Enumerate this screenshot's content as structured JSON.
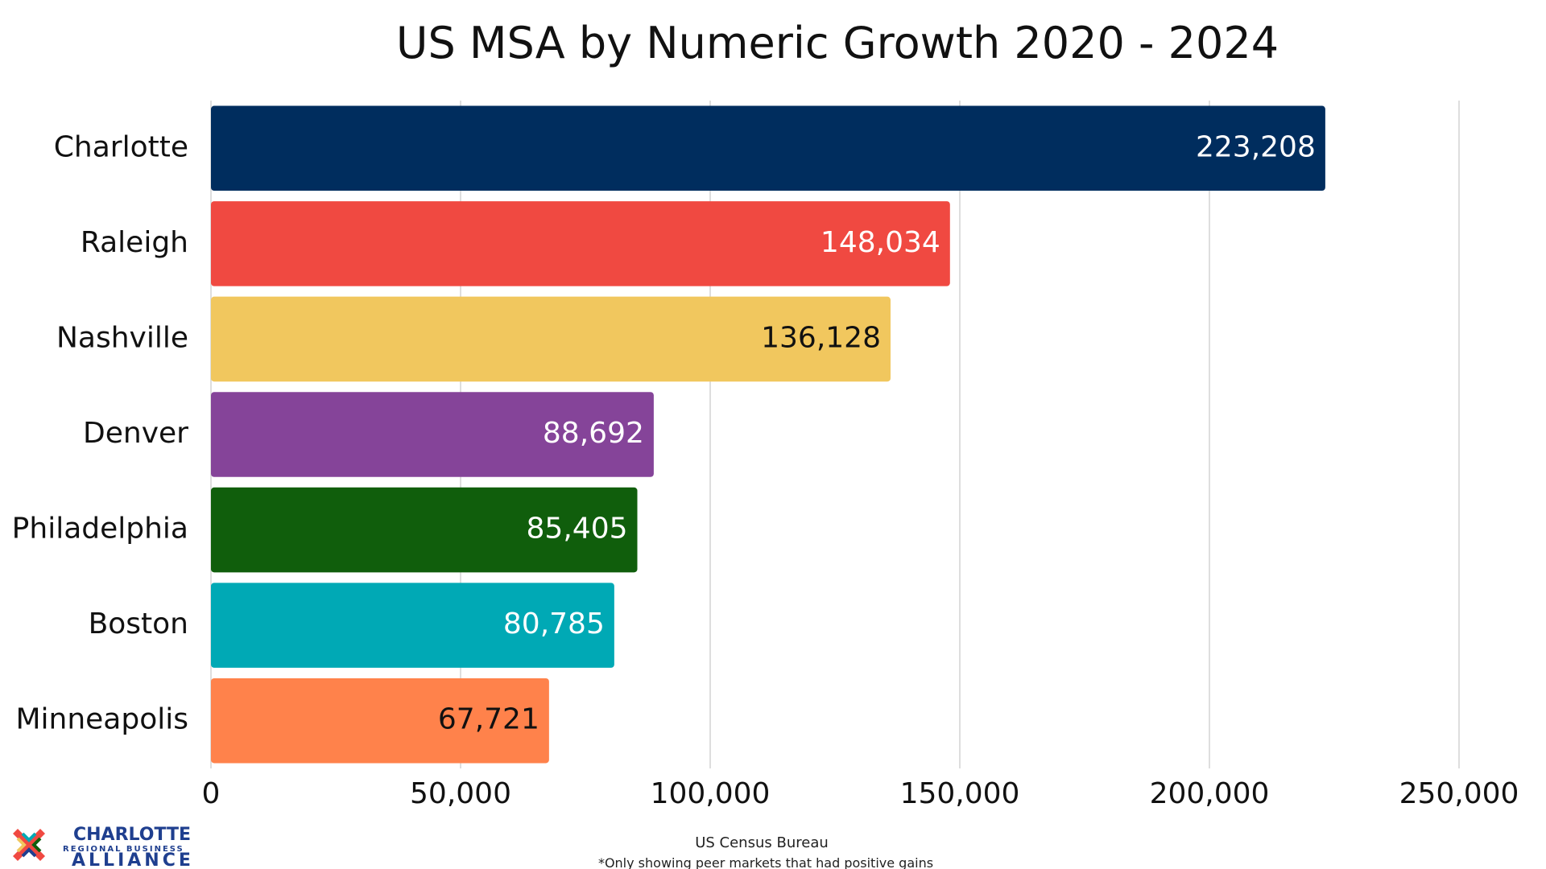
{
  "chart_data": {
    "type": "bar",
    "orientation": "horizontal",
    "title": "US MSA by Numeric Growth 2020 - 2024",
    "categories": [
      "Charlotte",
      "Raleigh",
      "Nashville",
      "Denver",
      "Philadelphia",
      "Boston",
      "Minneapolis"
    ],
    "values": [
      223208,
      148034,
      136128,
      88692,
      85405,
      80785,
      67721
    ],
    "value_labels": [
      "223,208",
      "148,034",
      "136,128",
      "88,692",
      "85,405",
      "80,785",
      "67,721"
    ],
    "bar_colors": [
      "#002d5e",
      "#f04941",
      "#f1c75e",
      "#854499",
      "#105e0c",
      "#00a9b5",
      "#ff824b"
    ],
    "label_colors": [
      "#ffffff",
      "#ffffff",
      "#111111",
      "#ffffff",
      "#ffffff",
      "#ffffff",
      "#111111"
    ],
    "xlim": [
      0,
      250000
    ],
    "x_ticks": [
      0,
      50000,
      100000,
      150000,
      200000,
      250000
    ],
    "x_tick_labels": [
      "0",
      "50,000",
      "100,000",
      "150,000",
      "200,000",
      "250,000"
    ],
    "grid": true,
    "xlabel": "",
    "ylabel": ""
  },
  "footer": {
    "source": "US Census Bureau",
    "note": "*Only showing peer markets that had positive gains"
  },
  "logo": {
    "line1": "CHARLOTTE",
    "line2": "REGIONAL BUSINESS",
    "line3": "ALLIANCE",
    "mark": "®"
  }
}
